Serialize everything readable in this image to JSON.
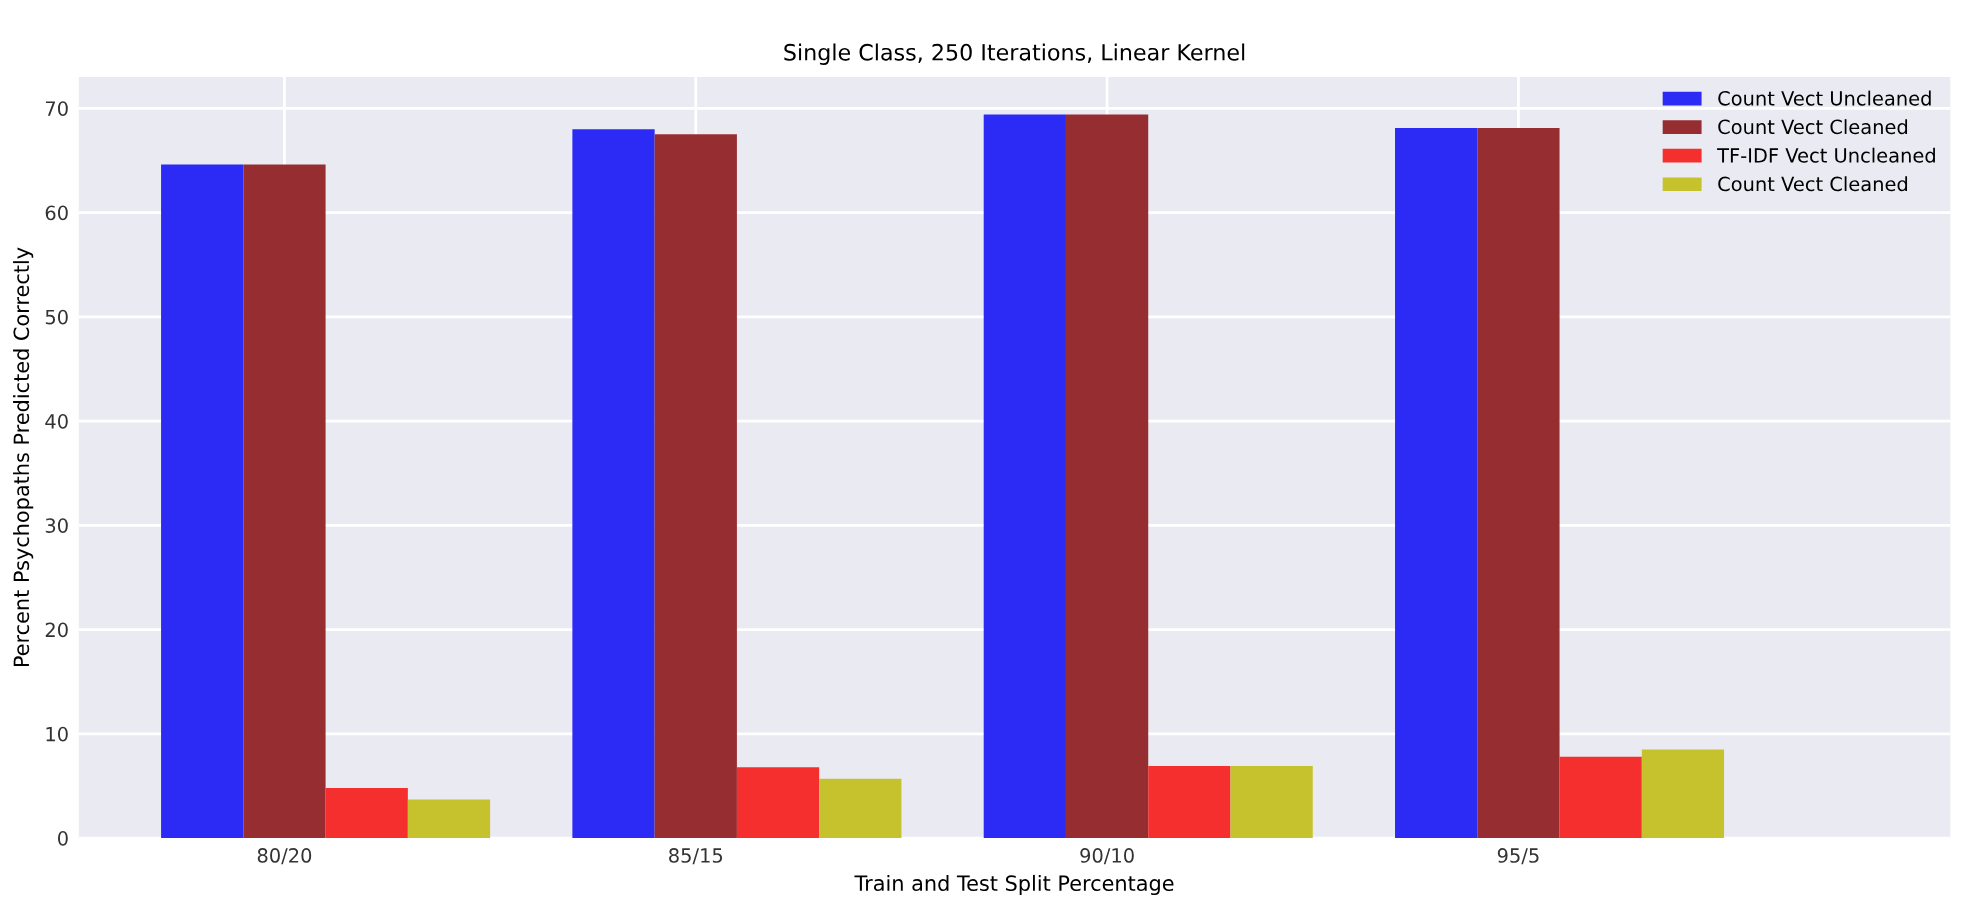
{
  "chart_data": {
    "type": "bar",
    "title": "Single Class, 250 Iterations, Linear Kernel",
    "xlabel": "Train and Test Split Percentage",
    "ylabel": "Percent Psychopaths Predicted Correctly",
    "categories": [
      "80/20",
      "85/15",
      "90/10",
      "95/5"
    ],
    "series": [
      {
        "name": "Count Vect Uncleaned",
        "color": "#2b2bf5",
        "values": [
          64.6,
          68.0,
          69.4,
          68.1
        ]
      },
      {
        "name": "Count Vect Cleaned",
        "color": "#962e31",
        "values": [
          64.6,
          67.5,
          69.4,
          68.1
        ]
      },
      {
        "name": "TF-IDF Vect Uncleaned",
        "color": "#f52e2e",
        "values": [
          4.8,
          6.8,
          6.9,
          7.8
        ]
      },
      {
        "name": "Count Vect Cleaned",
        "color": "#c6c22e",
        "values": [
          3.7,
          5.7,
          6.9,
          8.5
        ]
      }
    ],
    "ylim": [
      0,
      73
    ],
    "yticks": [
      0,
      10,
      20,
      30,
      40,
      50,
      60,
      70
    ],
    "grid": true,
    "legend": "top right"
  }
}
